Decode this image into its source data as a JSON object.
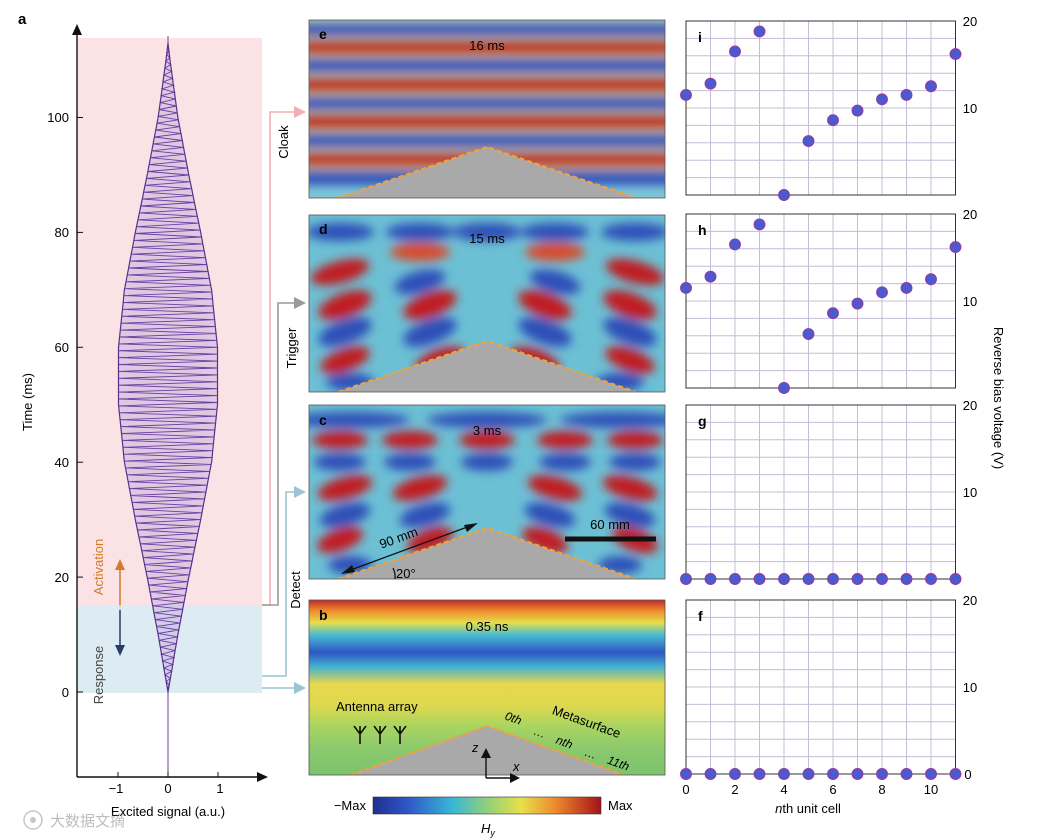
{
  "figure": {
    "panel_a": {
      "label": "a",
      "ylabel": "Time (ms)",
      "xlabel": "Excited signal (a.u.)",
      "xticks": [
        "−1",
        "0",
        "1"
      ],
      "yticks": [
        "0",
        "20",
        "40",
        "60",
        "80",
        "100"
      ],
      "activation_label": "Activation",
      "response_label": "Response",
      "colors": {
        "activation_bg": "#fbe3e5",
        "response_bg": "#dcecf2",
        "signal": "#6b3fa0",
        "activation_arrow": "#d07a2c",
        "response_arrow": "#2a3a6e"
      }
    },
    "field_panels": [
      {
        "label": "e",
        "time": "16 ms",
        "side": "Cloak"
      },
      {
        "label": "d",
        "time": "15 ms",
        "side": "Trigger"
      },
      {
        "label": "c",
        "time": "3 ms",
        "side": "Detect",
        "dim_90": "90 mm",
        "angle": "20°",
        "scale": "60 mm"
      },
      {
        "label": "b",
        "time": "0.35 ns",
        "antenna": "Antenna array",
        "metasurface": "Metasurface",
        "cell_0": "0th",
        "cell_n": "nth",
        "cell_11": "11th",
        "dots": "…",
        "axis_z": "z",
        "axis_x": "x"
      }
    ],
    "colorbar": {
      "min_label": "−Max",
      "max_label": "Max",
      "field_label": "H",
      "field_sub": "y"
    },
    "voltage_axis": {
      "ylabel": "Reverse bias voltage (V)",
      "xlabel_italic": "n",
      "xlabel_rest": "th unit cell",
      "xticks": [
        "0",
        "2",
        "4",
        "6",
        "8",
        "10"
      ],
      "yticks": [
        "10",
        "20"
      ],
      "zero_tick": "0"
    },
    "watermark": "大数据文摘"
  },
  "chart_data": [
    {
      "type": "line",
      "title": "Excited signal",
      "xlabel": "Excited signal (a.u.)",
      "ylabel": "Time (ms)",
      "xlim": [
        -1.9,
        1.9
      ],
      "ylim": [
        -15,
        115
      ],
      "envelope_t": [
        0,
        10,
        20,
        30,
        40,
        50,
        60,
        70,
        80,
        90,
        100,
        110,
        113
      ],
      "envelope_amp": [
        0.0,
        0.2,
        0.42,
        0.66,
        0.88,
        1.0,
        1.0,
        0.88,
        0.66,
        0.42,
        0.2,
        0.04,
        0.0
      ],
      "activation_range_ms": [
        15,
        113
      ],
      "response_range_ms": [
        0,
        15
      ]
    },
    {
      "type": "scatter",
      "panel": "i",
      "xlabel": "nth unit cell",
      "ylabel": "Reverse bias voltage (V)",
      "xlim": [
        0,
        11
      ],
      "ylim": [
        0,
        20
      ],
      "x": [
        0,
        1,
        2,
        3,
        4,
        5,
        6,
        7,
        8,
        9,
        10,
        11
      ],
      "y": [
        11.5,
        12.8,
        16.5,
        18.8,
        0.0,
        6.2,
        8.6,
        9.7,
        11.0,
        11.5,
        12.5,
        16.2
      ]
    },
    {
      "type": "scatter",
      "panel": "h",
      "xlabel": "nth unit cell",
      "ylabel": "Reverse bias voltage (V)",
      "xlim": [
        0,
        11
      ],
      "ylim": [
        0,
        20
      ],
      "x": [
        0,
        1,
        2,
        3,
        4,
        5,
        6,
        7,
        8,
        9,
        10,
        11
      ],
      "y": [
        11.5,
        12.8,
        16.5,
        18.8,
        0.0,
        6.2,
        8.6,
        9.7,
        11.0,
        11.5,
        12.5,
        16.2
      ]
    },
    {
      "type": "scatter",
      "panel": "g",
      "xlabel": "nth unit cell",
      "ylabel": "Reverse bias voltage (V)",
      "xlim": [
        0,
        11
      ],
      "ylim": [
        0,
        20
      ],
      "x": [
        0,
        1,
        2,
        3,
        4,
        5,
        6,
        7,
        8,
        9,
        10,
        11
      ],
      "y": [
        0,
        0,
        0,
        0,
        0,
        0,
        0,
        0,
        0,
        0,
        0,
        0
      ]
    },
    {
      "type": "scatter",
      "panel": "f",
      "xlabel": "nth unit cell",
      "ylabel": "Reverse bias voltage (V)",
      "xlim": [
        0,
        11
      ],
      "ylim": [
        0,
        20
      ],
      "x": [
        0,
        1,
        2,
        3,
        4,
        5,
        6,
        7,
        8,
        9,
        10,
        11
      ],
      "y": [
        0,
        0,
        0,
        0,
        0,
        0,
        0,
        0,
        0,
        0,
        0,
        0
      ]
    }
  ]
}
